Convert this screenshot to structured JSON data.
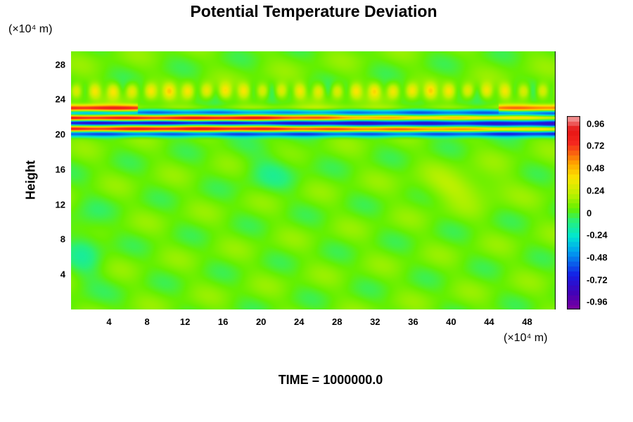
{
  "chart_data": {
    "type": "heatmap",
    "title": "Potential Temperature Deviation",
    "ylabel": "Height",
    "y_unit": "(×10⁴ m)",
    "x_unit": "(×10⁴ m)",
    "x_ticks": [
      "4",
      "8",
      "12",
      "16",
      "20",
      "24",
      "28",
      "32",
      "36",
      "40",
      "44",
      "48"
    ],
    "y_ticks": [
      "4",
      "8",
      "12",
      "16",
      "20",
      "24",
      "28"
    ],
    "xlim": [
      0,
      51
    ],
    "ylim": [
      0,
      29.5
    ],
    "colorbar": {
      "range": [
        -1.04,
        1.04
      ],
      "ticks": [
        "0.96",
        "0.72",
        "0.48",
        "0.24",
        "0",
        "-0.24",
        "-0.48",
        "-0.72",
        "-0.96"
      ]
    },
    "field": {
      "background": 0.05,
      "bands": [
        {
          "y": 20.2,
          "value": -0.85,
          "note": "dark blue/purple layer"
        },
        {
          "y": 20.6,
          "value": 1.0,
          "note": "salmon positive layer"
        },
        {
          "y": 21.4,
          "value": -0.95,
          "note": "purple negative layer, widens to the right"
        },
        {
          "y": 21.9,
          "value": 0.95,
          "note": "salmon positive layer"
        },
        {
          "y": 22.5,
          "value": -0.6,
          "note": "blue layer"
        },
        {
          "y": 23.0,
          "value": 0.8,
          "note": "red layer at left and right edges"
        },
        {
          "y": 25.0,
          "value": 0.3,
          "note": "yellow wave layer"
        }
      ]
    },
    "footer": "TIME = 1000000.0"
  }
}
